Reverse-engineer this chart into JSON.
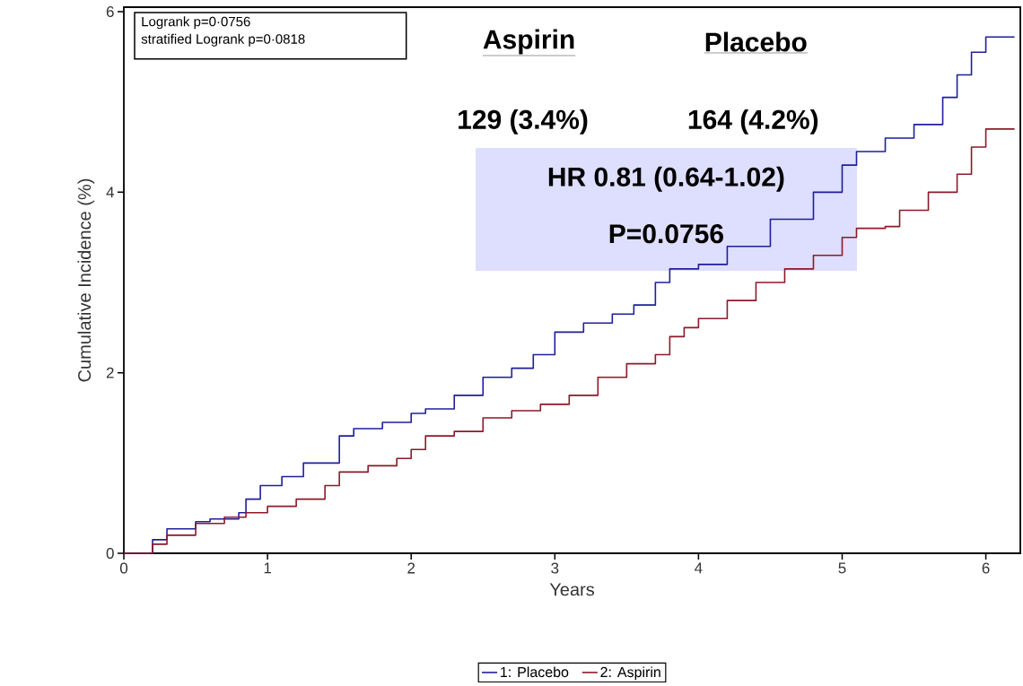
{
  "chart_data": {
    "type": "step",
    "xlabel": "Years",
    "ylabel": "Cumulative Incidence (%)",
    "xlim": [
      0,
      6.24
    ],
    "ylim": [
      0,
      6.05
    ],
    "xticks": [
      0,
      1,
      2,
      3,
      4,
      5,
      6
    ],
    "yticks": [
      0,
      2,
      4,
      6
    ],
    "grid": false,
    "legend": "bottom",
    "line_style": "solid",
    "marker": "none",
    "series": [
      {
        "name": "1: Placebo",
        "color": "#1f1f9a",
        "x": [
          0,
          0.2,
          0.3,
          0.5,
          0.6,
          0.8,
          0.85,
          0.95,
          1.1,
          1.25,
          1.5,
          1.6,
          1.8,
          2.0,
          2.1,
          2.3,
          2.5,
          2.7,
          2.85,
          3.0,
          3.2,
          3.4,
          3.55,
          3.7,
          3.8,
          4.0,
          4.2,
          4.5,
          4.8,
          5.0,
          5.1,
          5.3,
          5.5,
          5.7,
          5.8,
          5.9,
          6.0,
          6.2
        ],
        "values": [
          0,
          0.15,
          0.27,
          0.35,
          0.38,
          0.45,
          0.6,
          0.75,
          0.85,
          1.0,
          1.3,
          1.38,
          1.45,
          1.55,
          1.6,
          1.75,
          1.95,
          2.05,
          2.2,
          2.45,
          2.55,
          2.65,
          2.75,
          3.0,
          3.15,
          3.2,
          3.4,
          3.7,
          4.0,
          4.3,
          4.45,
          4.6,
          4.75,
          5.05,
          5.3,
          5.55,
          5.72,
          5.72
        ]
      },
      {
        "name": "2: Aspirin",
        "color": "#8b1a2a",
        "x": [
          0,
          0.2,
          0.3,
          0.5,
          0.7,
          0.85,
          1.0,
          1.2,
          1.4,
          1.5,
          1.7,
          1.9,
          2.0,
          2.1,
          2.3,
          2.5,
          2.7,
          2.9,
          3.1,
          3.3,
          3.5,
          3.7,
          3.8,
          3.9,
          4.0,
          4.2,
          4.4,
          4.6,
          4.8,
          5.0,
          5.1,
          5.3,
          5.4,
          5.6,
          5.8,
          5.9,
          6.0,
          6.2
        ],
        "values": [
          0,
          0.1,
          0.2,
          0.33,
          0.4,
          0.45,
          0.52,
          0.6,
          0.75,
          0.9,
          0.97,
          1.05,
          1.15,
          1.3,
          1.35,
          1.5,
          1.58,
          1.65,
          1.75,
          1.95,
          2.1,
          2.2,
          2.4,
          2.5,
          2.6,
          2.8,
          3.0,
          3.15,
          3.3,
          3.5,
          3.6,
          3.62,
          3.8,
          4.0,
          4.2,
          4.5,
          4.7,
          4.7
        ]
      }
    ],
    "annotations": [
      "Logrank p=0·0756",
      "stratified Logrank p=0·0818",
      "Aspirin",
      "Placebo",
      "129 (3.4%)",
      "164 (4.2%)",
      "HR 0.81 (0.64-1.02)",
      "P=0.0756"
    ]
  }
}
